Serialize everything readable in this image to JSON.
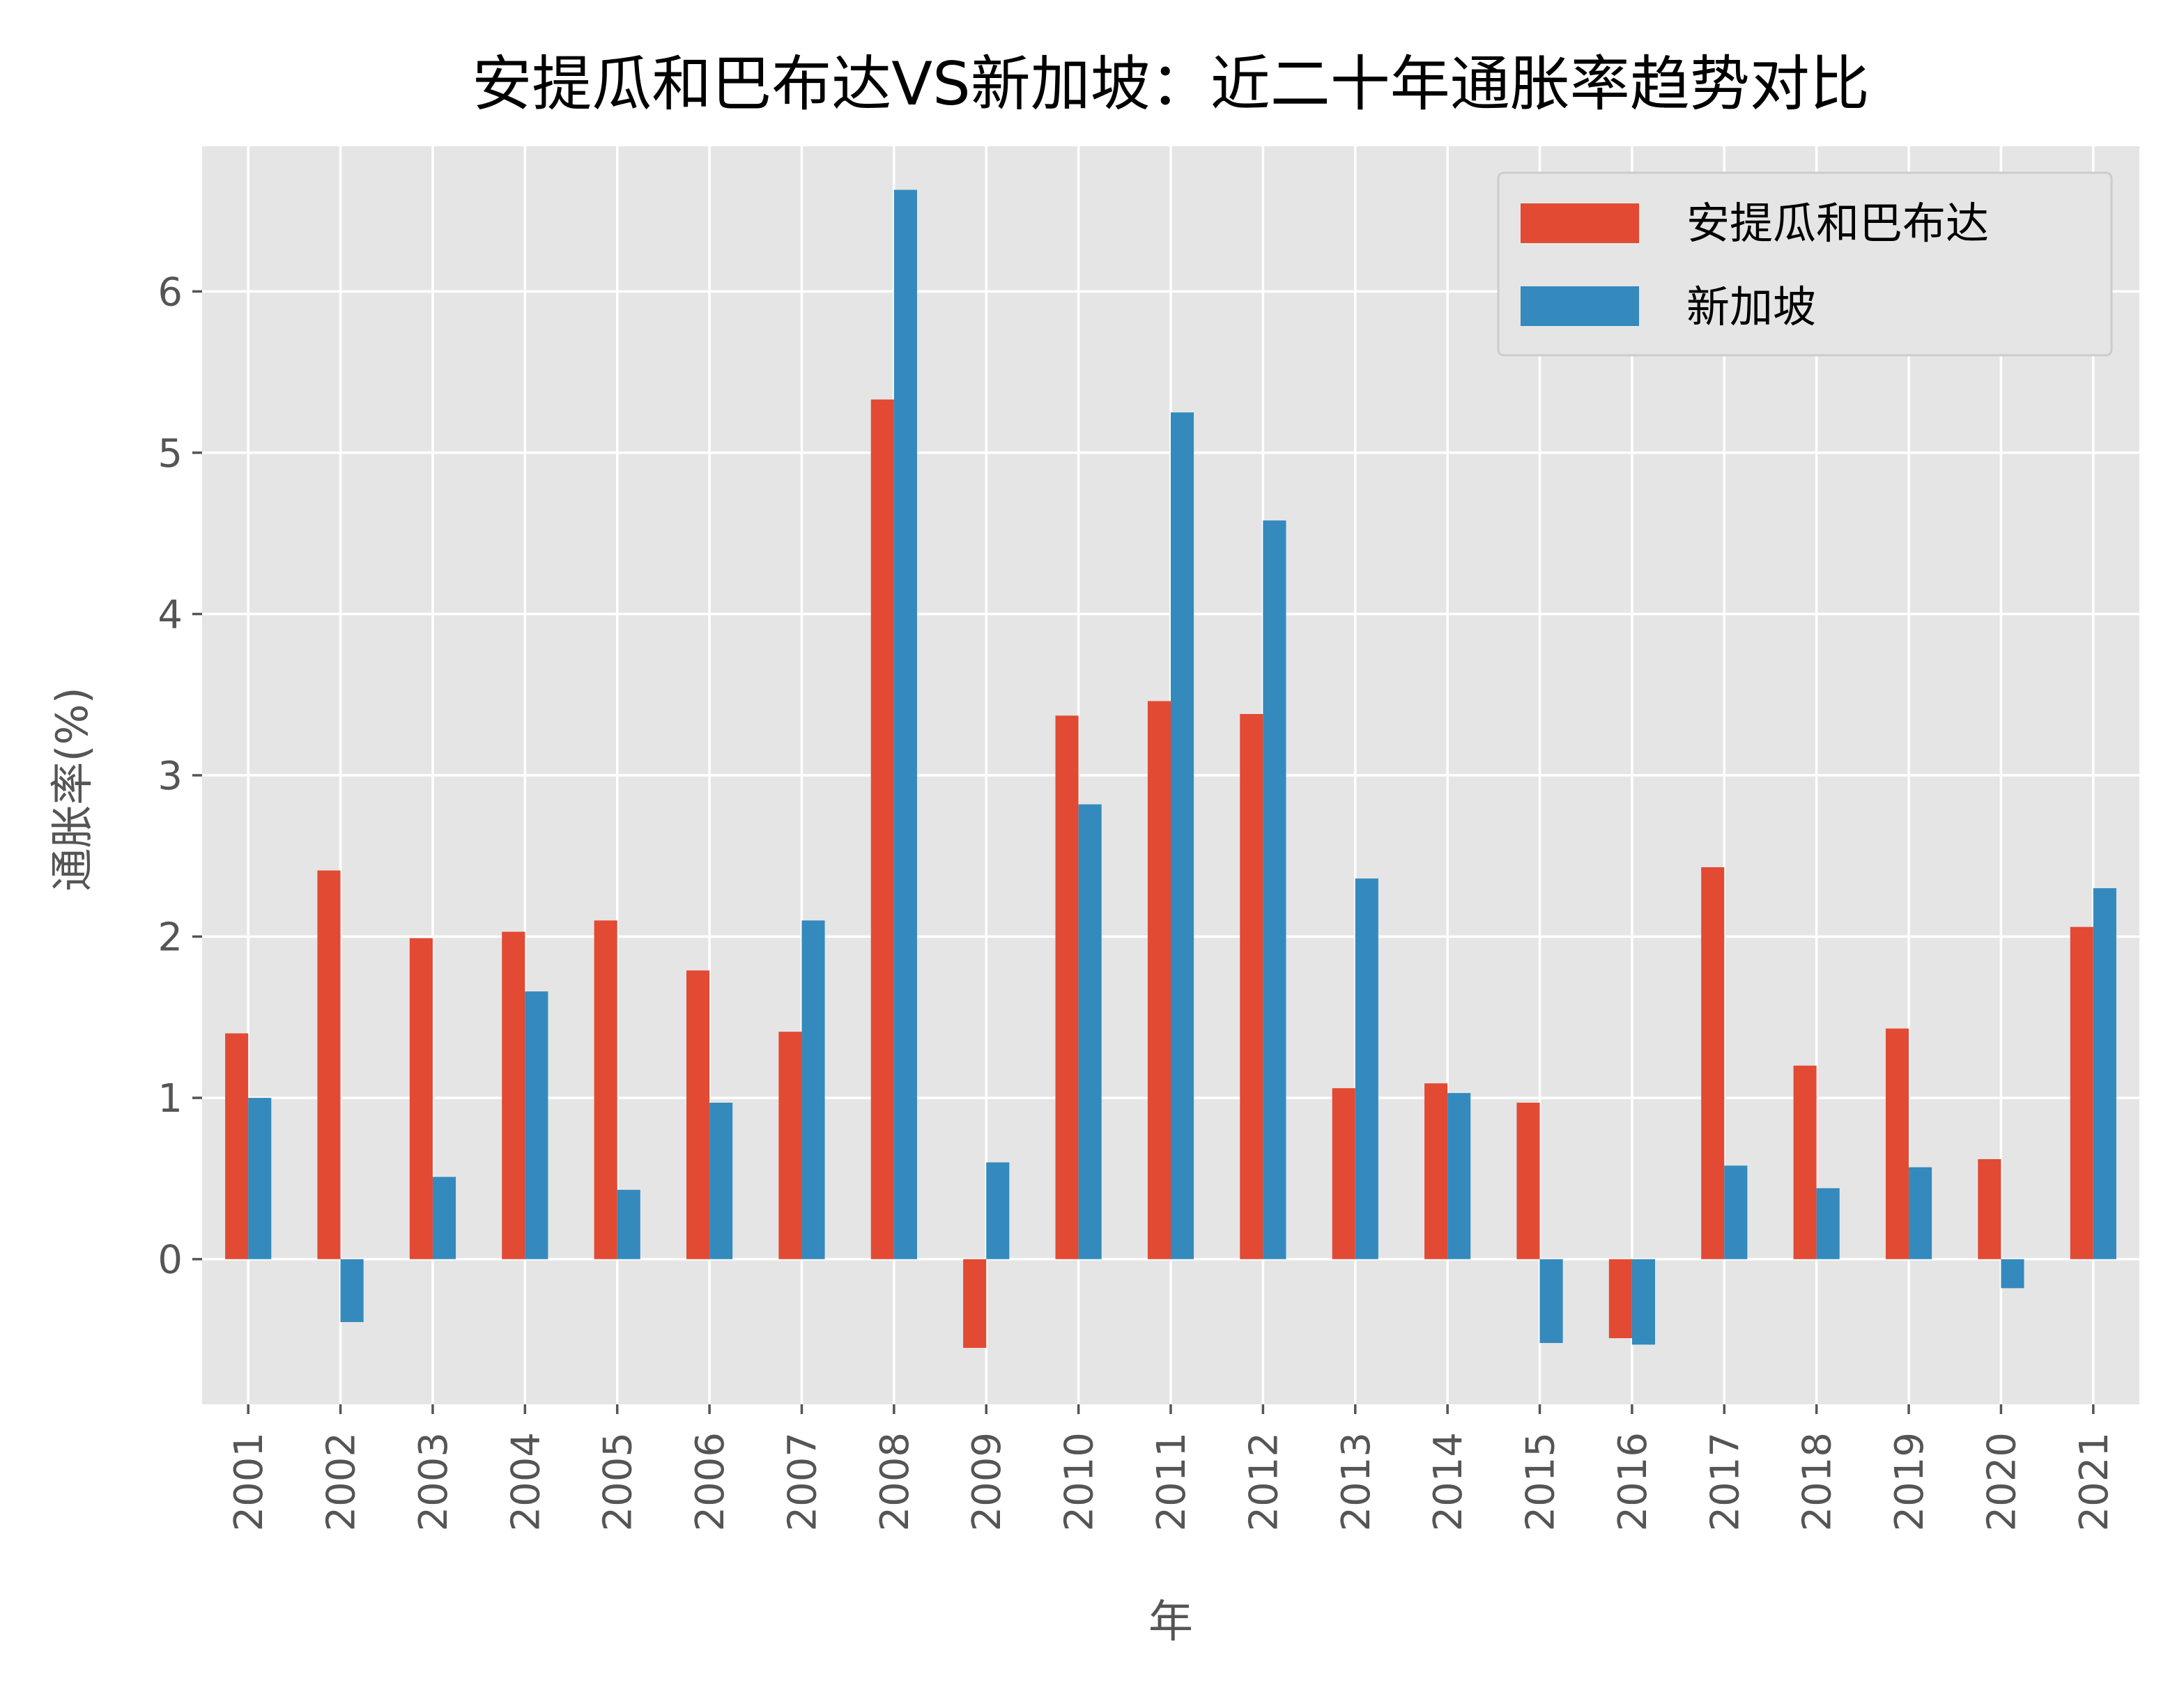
{
  "chart_data": {
    "type": "bar",
    "title": "安提瓜和巴布达VS新加坡：近二十年通胀率趋势对比",
    "xlabel": "年",
    "ylabel": "通胀率(%)",
    "ylim": [
      -0.9,
      6.9
    ],
    "yticks": [
      0,
      1,
      2,
      3,
      4,
      5,
      6
    ],
    "grid": true,
    "legend_position": "upper right",
    "categories": [
      "2001",
      "2002",
      "2003",
      "2004",
      "2005",
      "2006",
      "2007",
      "2008",
      "2009",
      "2010",
      "2011",
      "2012",
      "2013",
      "2014",
      "2015",
      "2016",
      "2017",
      "2018",
      "2019",
      "2020",
      "2021"
    ],
    "series": [
      {
        "name": "安提瓜和巴布达",
        "color": "#E24A33",
        "values": [
          1.4,
          2.41,
          1.99,
          2.03,
          2.1,
          1.79,
          1.41,
          5.33,
          -0.55,
          3.37,
          3.46,
          3.38,
          1.06,
          1.09,
          0.97,
          -0.49,
          2.43,
          1.2,
          1.43,
          0.62,
          2.06
        ]
      },
      {
        "name": "新加坡",
        "color": "#348ABD",
        "values": [
          1.0,
          -0.39,
          0.51,
          1.66,
          0.43,
          0.97,
          2.1,
          6.63,
          0.6,
          2.82,
          5.25,
          4.58,
          2.36,
          1.03,
          -0.52,
          -0.53,
          0.58,
          0.44,
          0.57,
          -0.18,
          2.3
        ]
      }
    ]
  }
}
